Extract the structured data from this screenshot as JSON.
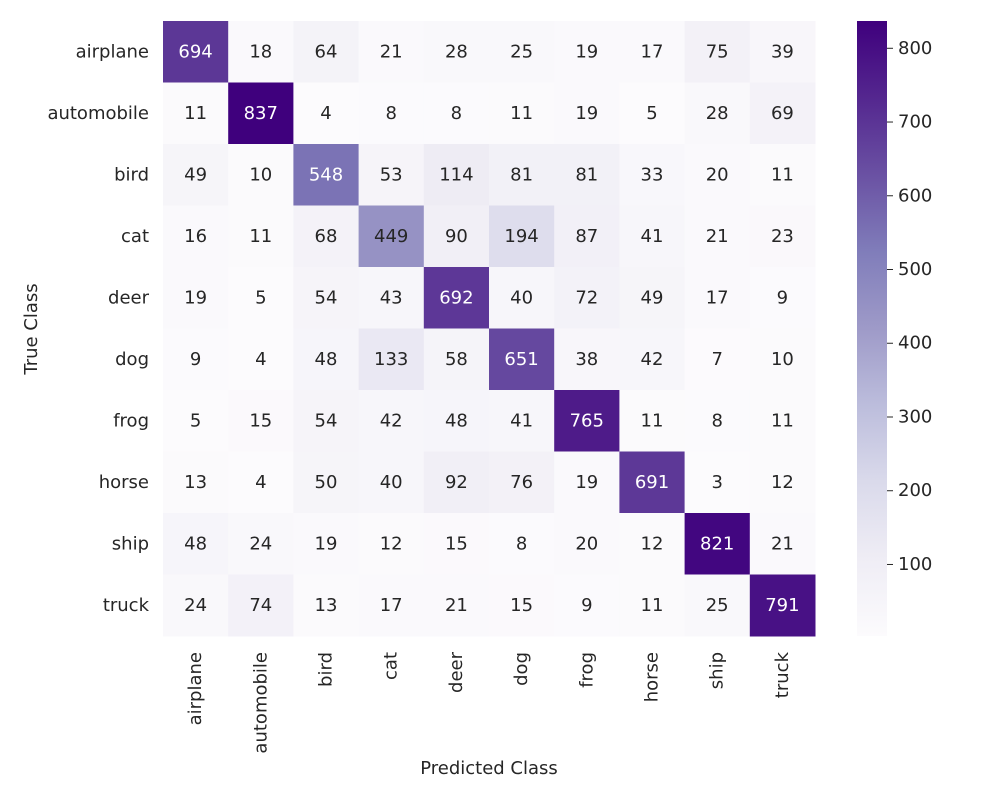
{
  "chart_data": {
    "type": "heatmap",
    "title": "",
    "xlabel": "Predicted Class",
    "ylabel": "True Class",
    "x_categories": [
      "airplane",
      "automobile",
      "bird",
      "cat",
      "deer",
      "dog",
      "frog",
      "horse",
      "ship",
      "truck"
    ],
    "y_categories": [
      "airplane",
      "automobile",
      "bird",
      "cat",
      "deer",
      "dog",
      "frog",
      "horse",
      "ship",
      "truck"
    ],
    "values": [
      [
        694,
        18,
        64,
        21,
        28,
        25,
        19,
        17,
        75,
        39
      ],
      [
        11,
        837,
        4,
        8,
        8,
        11,
        19,
        5,
        28,
        69
      ],
      [
        49,
        10,
        548,
        53,
        114,
        81,
        81,
        33,
        20,
        11
      ],
      [
        16,
        11,
        68,
        449,
        90,
        194,
        87,
        41,
        21,
        23
      ],
      [
        19,
        5,
        54,
        43,
        692,
        40,
        72,
        49,
        17,
        9
      ],
      [
        9,
        4,
        48,
        133,
        58,
        651,
        38,
        42,
        7,
        10
      ],
      [
        5,
        15,
        54,
        42,
        48,
        41,
        765,
        11,
        8,
        11
      ],
      [
        13,
        4,
        50,
        40,
        92,
        76,
        19,
        691,
        3,
        12
      ],
      [
        48,
        24,
        19,
        12,
        15,
        8,
        20,
        12,
        821,
        21
      ],
      [
        24,
        74,
        13,
        17,
        21,
        15,
        9,
        11,
        25,
        791
      ]
    ],
    "colormap": "Purples",
    "color_range": [
      3,
      837
    ],
    "colorbar_ticks": [
      100,
      200,
      300,
      400,
      500,
      600,
      700,
      800
    ],
    "annotations": true,
    "grid": false
  }
}
